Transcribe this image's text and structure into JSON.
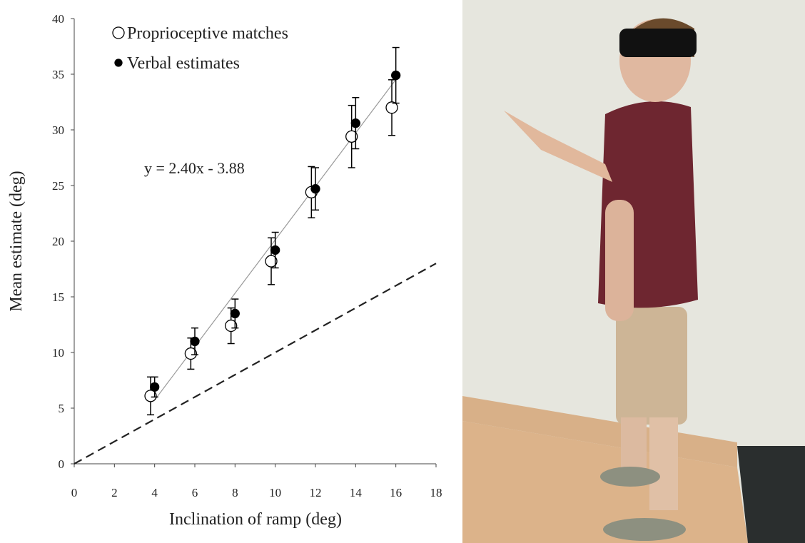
{
  "chart_data": {
    "type": "scatter",
    "x_label": "Inclination of ramp (deg)",
    "y_label": "Mean estimate (deg)",
    "annotation": "y = 2.40x - 3.88",
    "xlim": [
      0,
      18
    ],
    "xticks": [
      0,
      2,
      4,
      6,
      8,
      10,
      12,
      14,
      16,
      18
    ],
    "ylim": [
      0,
      40
    ],
    "yticks": [
      0,
      5,
      10,
      15,
      20,
      25,
      30,
      35,
      40
    ],
    "legend": "top-left",
    "series": [
      {
        "name": "Proprioceptive matches",
        "color": "#000000",
        "marker": "open",
        "x": [
          3.8,
          5.8,
          7.8,
          9.8,
          11.8,
          13.8,
          15.8
        ],
        "values": [
          6.1,
          9.9,
          12.4,
          18.2,
          24.4,
          29.4,
          32.0
        ],
        "errors": [
          1.7,
          1.4,
          1.6,
          2.1,
          2.3,
          2.8,
          2.5
        ]
      },
      {
        "name": "Verbal estimates",
        "color": "#000000",
        "marker": "filled",
        "x": [
          4,
          6,
          8,
          10,
          12,
          14,
          16
        ],
        "values": [
          6.9,
          11.0,
          13.5,
          19.2,
          24.7,
          30.6,
          34.9
        ],
        "errors": [
          0.9,
          1.2,
          1.3,
          1.6,
          1.9,
          2.3,
          2.5
        ]
      }
    ],
    "lines": [
      {
        "x": [
          4,
          16
        ],
        "values": [
          5.72,
          34.52
        ],
        "color": "#999999",
        "dashed": false
      },
      {
        "x": [
          0,
          18
        ],
        "values": [
          0,
          18
        ],
        "color": "#222222",
        "dashed": true
      }
    ]
  }
}
